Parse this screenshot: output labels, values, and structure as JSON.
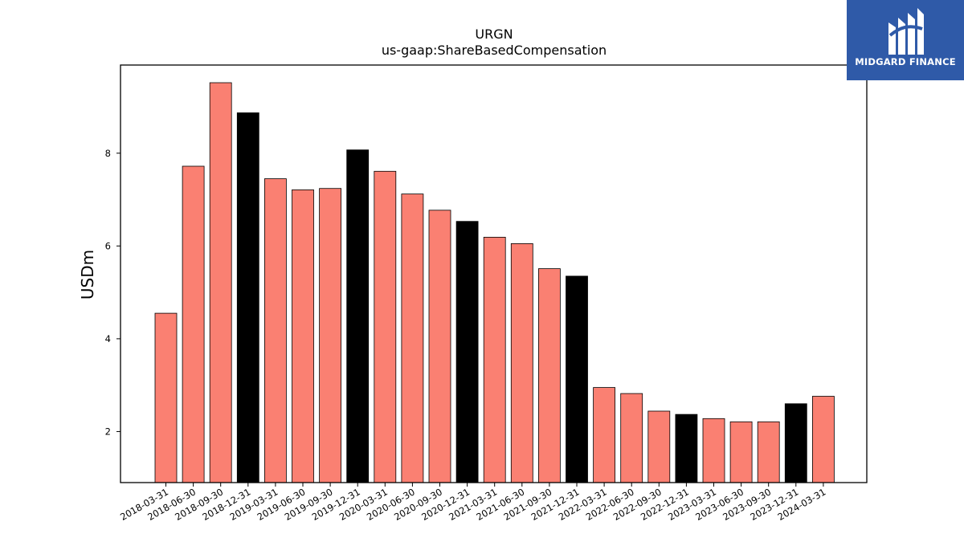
{
  "logo": {
    "text": "MIDGARD FINANCE",
    "icon": "midgard-m-icon",
    "background": "#2f5aa8"
  },
  "chart_data": {
    "type": "bar",
    "title": "URGN",
    "subtitle": "us-gaap:ShareBasedCompensation",
    "xlabel": "",
    "ylabel": "USDm",
    "ylim": [
      0.9,
      9.9
    ],
    "yticks": [
      2,
      4,
      6,
      8
    ],
    "grid": false,
    "colors": {
      "quarter": "#fa8072",
      "year_end": "#000000",
      "edge": "#000000"
    },
    "categories": [
      "2018-03-31",
      "2018-06-30",
      "2018-09-30",
      "2018-12-31",
      "2019-03-31",
      "2019-06-30",
      "2019-09-30",
      "2019-12-31",
      "2020-03-31",
      "2020-06-30",
      "2020-09-30",
      "2020-12-31",
      "2021-03-31",
      "2021-06-30",
      "2021-09-30",
      "2021-12-31",
      "2022-03-31",
      "2022-06-30",
      "2022-09-30",
      "2022-12-31",
      "2023-03-31",
      "2023-06-30",
      "2023-09-30",
      "2023-12-31",
      "2024-03-31"
    ],
    "values": [
      4.55,
      7.72,
      9.52,
      8.87,
      7.45,
      7.21,
      7.24,
      8.07,
      7.61,
      7.12,
      6.77,
      6.53,
      6.19,
      6.05,
      5.51,
      5.35,
      2.95,
      2.82,
      2.44,
      2.37,
      2.28,
      2.21,
      2.21,
      2.6,
      2.76
    ],
    "highlight": [
      false,
      false,
      false,
      true,
      false,
      false,
      false,
      true,
      false,
      false,
      false,
      true,
      false,
      false,
      false,
      true,
      false,
      false,
      false,
      true,
      false,
      false,
      false,
      true,
      false
    ]
  }
}
